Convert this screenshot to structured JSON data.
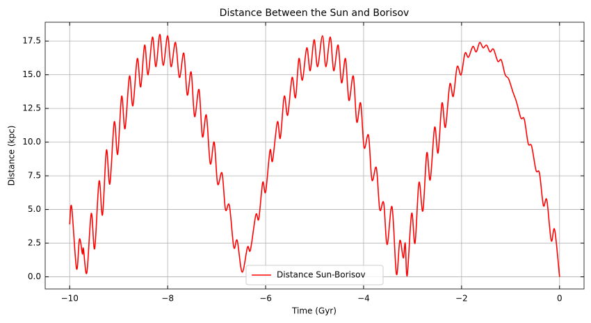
{
  "chart_data": {
    "type": "line",
    "title": "Distance Between the Sun and Borisov",
    "xlabel": "Time (Gyr)",
    "ylabel": "Distance (kpc)",
    "x": [
      -10,
      -9.96,
      -9.86,
      -9.8,
      -9.74,
      -9.72,
      -9.65,
      -9.56,
      -9.49,
      -9.4,
      -9.33,
      -9.25,
      -9.18,
      -9.09,
      -9.02,
      -8.94,
      -8.87,
      -8.78,
      -8.71,
      -8.62,
      -8.55,
      -8.47,
      -8.4,
      -8.31,
      -8.24,
      -8.16,
      -8.09,
      -8,
      -7.93,
      -7.84,
      -7.76,
      -7.67,
      -7.6,
      -7.52,
      -7.45,
      -7.36,
      -7.29,
      -7.21,
      -7.13,
      -7.05,
      -6.98,
      -6.89,
      -6.82,
      -6.74,
      -6.65,
      -6.58,
      -6.48,
      -6.37,
      -6.31,
      -6.2,
      -6.14,
      -6.06,
      -6,
      -5.91,
      -5.86,
      -5.76,
      -5.7,
      -5.62,
      -5.55,
      -5.46,
      -5.39,
      -5.32,
      -5.25,
      -5.16,
      -5.09,
      -5.01,
      -4.94,
      -4.84,
      -4.77,
      -4.68,
      -4.61,
      -4.52,
      -4.45,
      -4.37,
      -4.3,
      -4.21,
      -4.14,
      -4.06,
      -3.99,
      -3.9,
      -3.83,
      -3.74,
      -3.67,
      -3.59,
      -3.52,
      -3.42,
      -3.33,
      -3.26,
      -3.19,
      -3.15,
      -3.11,
      -3.02,
      -2.95,
      -2.87,
      -2.79,
      -2.71,
      -2.64,
      -2.55,
      -2.48,
      -2.4,
      -2.33,
      -2.24,
      -2.17,
      -2.09,
      -2.01,
      -1.93,
      -1.86,
      -1.77,
      -1.7,
      -1.63,
      -1.56,
      -1.49,
      -1.42,
      -1.35,
      -1.26,
      -1.19,
      -1.11,
      -1.04,
      -0.95,
      -0.88,
      -0.79,
      -0.72,
      -0.64,
      -0.57,
      -0.48,
      -0.41,
      -0.33,
      -0.26,
      -0.17,
      -0.1,
      0
    ],
    "series": [
      {
        "name": "Distance Sun-Borisov",
        "color": "#ff0000",
        "values": [
          3.9,
          5.2,
          0.6,
          2.8,
          1.7,
          2.1,
          0.3,
          4.7,
          2.1,
          7.1,
          4.6,
          9.4,
          6.9,
          11.5,
          9.1,
          13.4,
          11,
          14.9,
          12.7,
          16.2,
          14.1,
          17.2,
          15,
          17.8,
          15.6,
          18,
          15.7,
          17.9,
          15.6,
          17.4,
          14.8,
          16.6,
          13.5,
          15.2,
          11.9,
          13.9,
          10.4,
          12,
          8.4,
          10,
          6.9,
          7.7,
          5,
          5.3,
          2.2,
          2.7,
          0.35,
          2.2,
          2,
          4.6,
          4.3,
          7,
          6.3,
          9.4,
          8.6,
          11.5,
          10.3,
          13.4,
          12,
          14.8,
          13.3,
          16.2,
          14.6,
          17,
          15.3,
          17.6,
          15.6,
          17.9,
          15.6,
          17.8,
          15.3,
          17.2,
          14.4,
          16.2,
          13.1,
          14.9,
          11.5,
          12.9,
          9.6,
          10.5,
          7.2,
          8.1,
          5,
          5.5,
          2.4,
          5.2,
          0.2,
          2.7,
          1.4,
          2.5,
          0.1,
          4.7,
          2.5,
          7,
          4.9,
          9.2,
          7.2,
          11.1,
          9.2,
          12.9,
          11.1,
          14.3,
          13.4,
          15.6,
          15,
          16.6,
          16.3,
          17.1,
          16.7,
          17.4,
          17,
          17.2,
          16.7,
          16.9,
          16,
          16.1,
          15,
          14.7,
          13.7,
          13,
          11.8,
          11.7,
          9.9,
          9.7,
          7.9,
          7.7,
          5.3,
          5.7,
          2.7,
          3.5,
          0
        ]
      }
    ],
    "xlim": [
      -10.5,
      0.5
    ],
    "ylim": [
      -0.9,
      18.9
    ],
    "xticks": [
      {
        "value": -10,
        "label": "−10"
      },
      {
        "value": -8,
        "label": "−8"
      },
      {
        "value": -6,
        "label": "−6"
      },
      {
        "value": -4,
        "label": "−4"
      },
      {
        "value": -2,
        "label": "−2"
      },
      0
    ],
    "yticks": [
      {
        "value": 0,
        "label": "0.0"
      },
      2.5,
      {
        "value": 5,
        "label": "5.0"
      },
      7.5,
      {
        "value": 10,
        "label": "10.0"
      },
      12.5,
      {
        "value": 15,
        "label": "15.0"
      },
      17.5
    ],
    "grid": true,
    "legend": "lower center"
  }
}
